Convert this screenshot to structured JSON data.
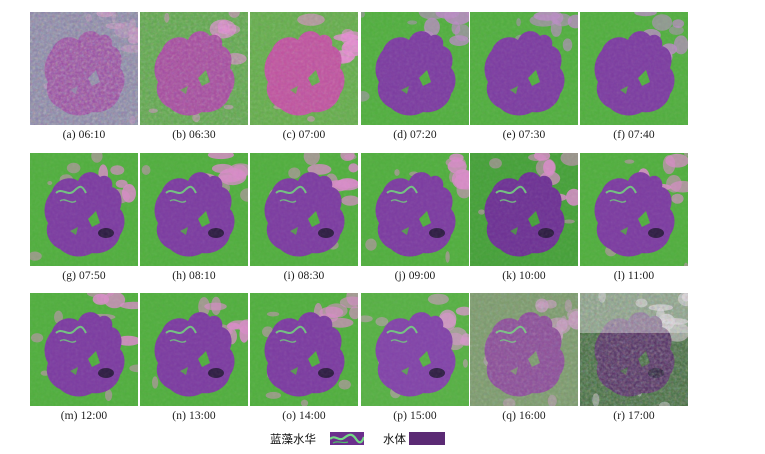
{
  "panels": [
    {
      "label": "(a) 06:10",
      "scene": "hazy"
    },
    {
      "label": "(b) 06:30",
      "scene": "pinkish"
    },
    {
      "label": "(c) 07:00",
      "scene": "pink"
    },
    {
      "label": "(d) 07:20",
      "scene": "clear"
    },
    {
      "label": "(e) 07:30",
      "scene": "clear"
    },
    {
      "label": "(f) 07:40",
      "scene": "clear"
    },
    {
      "label": "(g) 07:50",
      "scene": "bloom"
    },
    {
      "label": "(h) 08:10",
      "scene": "bloom"
    },
    {
      "label": "(i) 08:30",
      "scene": "bloom"
    },
    {
      "label": "(j) 09:00",
      "scene": "bloom"
    },
    {
      "label": "(k) 10:00",
      "scene": "bloom-dark"
    },
    {
      "label": "(l) 11:00",
      "scene": "bloom"
    },
    {
      "label": "(m) 12:00",
      "scene": "bloom"
    },
    {
      "label": "(n) 13:00",
      "scene": "bloom"
    },
    {
      "label": "(o) 14:00",
      "scene": "bloom"
    },
    {
      "label": "(p) 15:00",
      "scene": "bloom-light"
    },
    {
      "label": "(q) 16:00",
      "scene": "faded"
    },
    {
      "label": "(r) 17:00",
      "scene": "dusk"
    }
  ],
  "legend": {
    "bloom_label": "蓝藻水华",
    "water_label": "水体"
  },
  "colors": {
    "land_green": "#4fae3c",
    "lake_purple": "#7b3aa0",
    "lake_dark": "#5a2676",
    "bloom_green": "#6fd07a",
    "urban_pink": "#d98ac8",
    "water_swatch": "#5b2a74"
  }
}
